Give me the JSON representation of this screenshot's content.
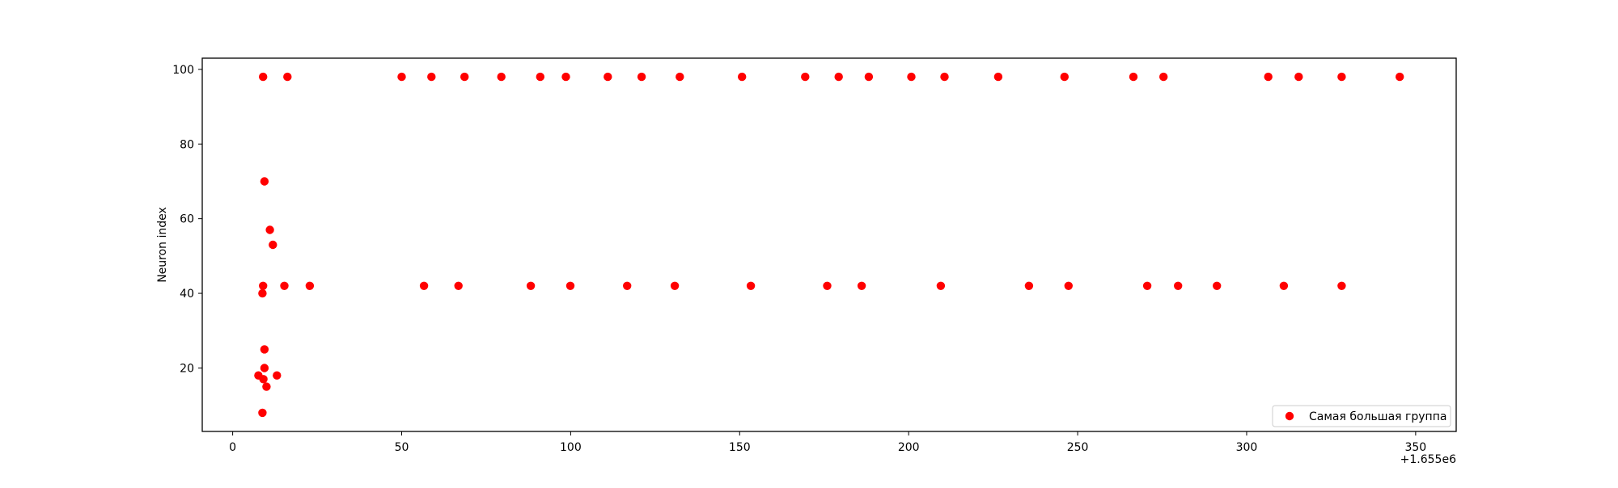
{
  "chart_data": {
    "type": "scatter",
    "title": "",
    "xlabel": "",
    "ylabel": "Neuron index",
    "x_offset_text": "+1.655e6",
    "x_offset_value": 1655000,
    "xlim": [
      -9,
      362
    ],
    "ylim": [
      3,
      103
    ],
    "xticks": [
      0,
      50,
      100,
      150,
      200,
      250,
      300,
      350
    ],
    "yticks": [
      20,
      40,
      60,
      80,
      100
    ],
    "grid": false,
    "legend_position": "lower right",
    "colors": {
      "marker": "#ff0000",
      "axes": "#000000",
      "background": "#ffffff"
    },
    "series": [
      {
        "name": "Самая большая группа",
        "points": [
          [
            9.0,
            98
          ],
          [
            16.2,
            98
          ],
          [
            50.0,
            98
          ],
          [
            58.8,
            98
          ],
          [
            68.6,
            98
          ],
          [
            79.5,
            98
          ],
          [
            91.0,
            98
          ],
          [
            98.6,
            98
          ],
          [
            111.0,
            98
          ],
          [
            121.0,
            98
          ],
          [
            132.3,
            98
          ],
          [
            150.7,
            98
          ],
          [
            169.4,
            98
          ],
          [
            179.3,
            98
          ],
          [
            188.2,
            98
          ],
          [
            200.8,
            98
          ],
          [
            210.6,
            98
          ],
          [
            226.5,
            98
          ],
          [
            246.1,
            98
          ],
          [
            266.5,
            98
          ],
          [
            275.4,
            98
          ],
          [
            306.4,
            98
          ],
          [
            315.4,
            98
          ],
          [
            328.1,
            98
          ],
          [
            345.3,
            98
          ],
          [
            9.4,
            70
          ],
          [
            11.0,
            57
          ],
          [
            11.9,
            53
          ],
          [
            9.0,
            42
          ],
          [
            15.3,
            42
          ],
          [
            22.8,
            42
          ],
          [
            56.6,
            42
          ],
          [
            66.8,
            42
          ],
          [
            88.2,
            42
          ],
          [
            99.9,
            42
          ],
          [
            116.7,
            42
          ],
          [
            130.8,
            42
          ],
          [
            153.3,
            42
          ],
          [
            175.9,
            42
          ],
          [
            186.1,
            42
          ],
          [
            209.5,
            42
          ],
          [
            235.6,
            42
          ],
          [
            247.3,
            42
          ],
          [
            270.6,
            42
          ],
          [
            279.7,
            42
          ],
          [
            291.2,
            42
          ],
          [
            311.0,
            42
          ],
          [
            328.1,
            42
          ],
          [
            8.8,
            40
          ],
          [
            9.4,
            25
          ],
          [
            9.4,
            20
          ],
          [
            7.6,
            18
          ],
          [
            13.1,
            18
          ],
          [
            9.1,
            17
          ],
          [
            10.0,
            15
          ],
          [
            8.8,
            8
          ]
        ]
      }
    ]
  }
}
